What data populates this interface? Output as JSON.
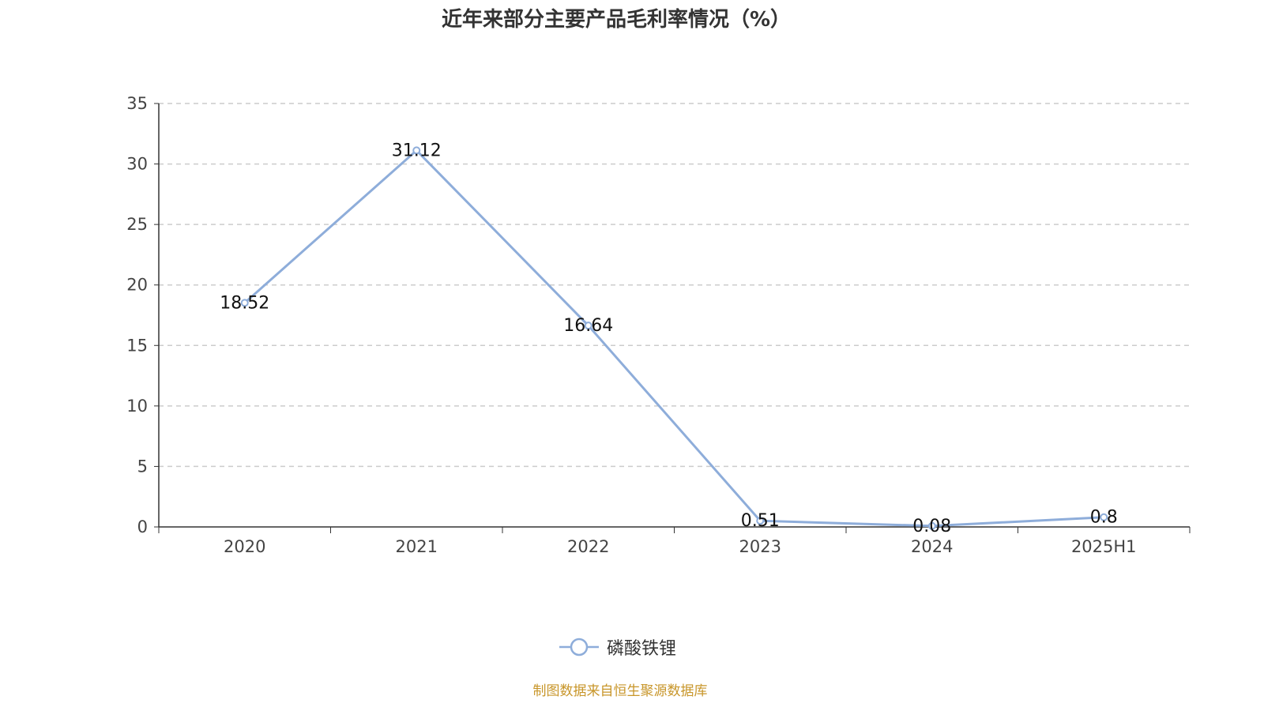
{
  "chart_data": {
    "type": "line",
    "title": "近年来部分主要产品毛利率情况（%）",
    "categories": [
      "2020",
      "2021",
      "2022",
      "2023",
      "2024",
      "2025H1"
    ],
    "series": [
      {
        "name": "磷酸铁锂",
        "values": [
          18.52,
          31.12,
          16.64,
          0.51,
          0.08,
          0.8
        ],
        "color": "#8eadda"
      }
    ],
    "ylim": [
      0,
      35
    ],
    "yticks": [
      0,
      5,
      10,
      15,
      20,
      25,
      30,
      35
    ],
    "grid": true,
    "legend_position": "bottom",
    "xlabel": "",
    "ylabel": ""
  },
  "source": "制图数据来自恒生聚源数据库",
  "colors": {
    "source": "#c8962a",
    "title": "#333333"
  }
}
